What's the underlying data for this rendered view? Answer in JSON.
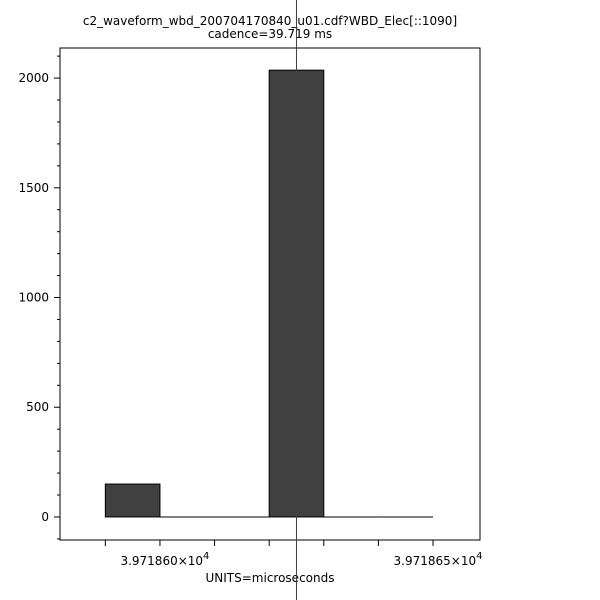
{
  "chart_data": {
    "type": "bar",
    "title": "c2_waveform_wbd_200704170840_u01.cdf?WBD_Elec[::1090]",
    "subtitle": "cadence=39.719 ms",
    "xlabel": "UNITS=microseconds",
    "ylabel": "",
    "bins": [
      {
        "x0": 39718.59,
        "x1": 39718.6,
        "value": 150
      },
      {
        "x0": 39718.6,
        "x1": 39718.61,
        "value": 0
      },
      {
        "x0": 39718.61,
        "x1": 39718.62,
        "value": 0
      },
      {
        "x0": 39718.62,
        "x1": 39718.63,
        "value": 2036
      },
      {
        "x0": 39718.63,
        "x1": 39718.64,
        "value": 0
      },
      {
        "x0": 39718.64,
        "x1": 39718.65,
        "value": 0
      }
    ],
    "xlim": [
      39718.5817,
      39718.6586
    ],
    "ylim": [
      -105,
      2137
    ],
    "x_major_ticks": [
      {
        "value": 39718.6,
        "mantissa": "3.971860×10",
        "exp": "4"
      },
      {
        "value": 39718.65,
        "mantissa": "3.971865×10",
        "exp": "4"
      }
    ],
    "x_minor_ticks": [
      39718.59,
      39718.61,
      39718.62,
      39718.63,
      39718.64
    ],
    "y_major_ticks": [
      0,
      500,
      1000,
      1500,
      2000
    ],
    "y_tick_labels": [
      "0",
      "500",
      "1000",
      "1500",
      "2000"
    ],
    "y_minor_step": 100,
    "grid": false,
    "cursor_x": 39718.625,
    "colors": {
      "bar": "#404040",
      "axis": "#000000",
      "cursor": "#404040"
    }
  }
}
